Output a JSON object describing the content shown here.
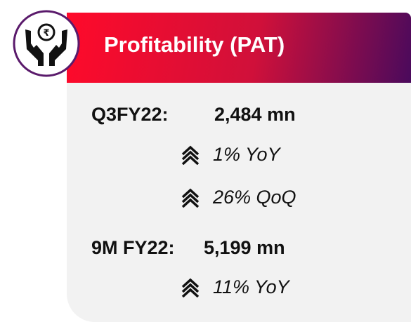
{
  "header": {
    "title": "Profitability (PAT)"
  },
  "sections": [
    {
      "label": "Q3FY22:",
      "value": "2,484 mn",
      "changes": [
        "1% YoY",
        "26% QoQ"
      ]
    },
    {
      "label": "9M FY22:",
      "value": "5,199 mn",
      "changes": [
        "11% YoY"
      ]
    }
  ]
}
